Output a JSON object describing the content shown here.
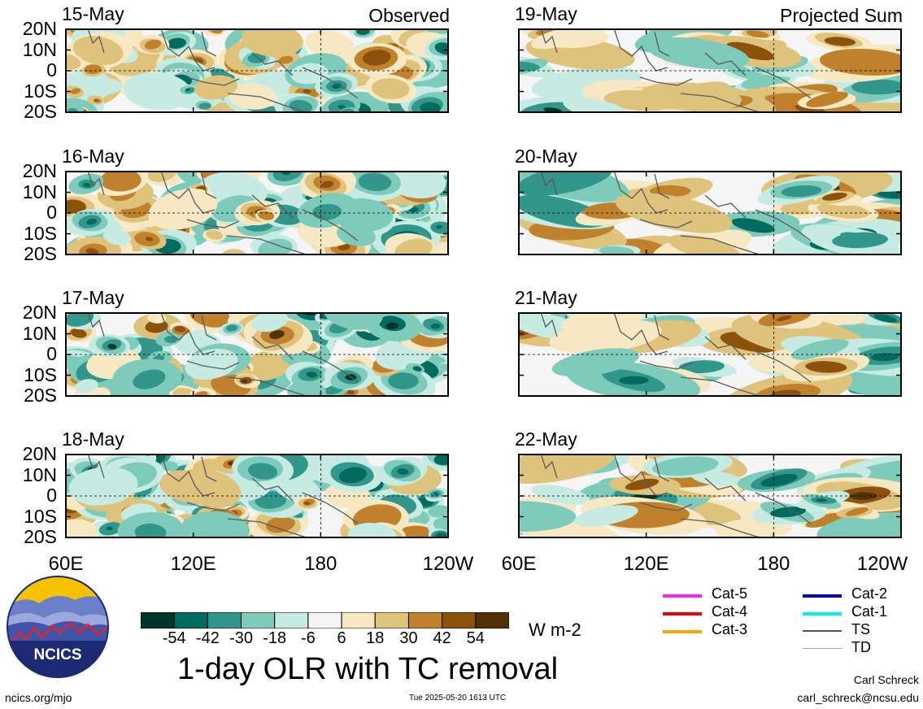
{
  "observed_label": "Observed",
  "projected_label": "Projected Sum",
  "lat_ticks": [
    "20N",
    "10N",
    "0",
    "10S",
    "20S"
  ],
  "lon_ticks": [
    "60E",
    "120E",
    "180",
    "120W"
  ],
  "panels": [
    {
      "date": "15-May",
      "type": "observed",
      "seed": 11
    },
    {
      "date": "16-May",
      "type": "observed",
      "seed": 23
    },
    {
      "date": "17-May",
      "type": "observed",
      "seed": 37
    },
    {
      "date": "18-May",
      "type": "observed",
      "seed": 51
    },
    {
      "date": "19-May",
      "type": "projected",
      "seed": 3
    },
    {
      "date": "20-May",
      "type": "projected",
      "seed": 7
    },
    {
      "date": "21-May",
      "type": "projected",
      "seed": 13
    },
    {
      "date": "22-May",
      "type": "projected",
      "seed": 19
    }
  ],
  "colorbar": {
    "labels": [
      "-54",
      "-42",
      "-30",
      "-18",
      "-6",
      "6",
      "18",
      "30",
      "42",
      "54"
    ],
    "colors": [
      "#01352b",
      "#006b5e",
      "#33968a",
      "#7fcbbb",
      "#c6ebe3",
      "#f5f5f5",
      "#f6e8c3",
      "#dfc27c",
      "#bf812c",
      "#8c510a",
      "#543005"
    ],
    "units": "W m-2"
  },
  "title": "1-day OLR with TC removal",
  "logo_text": "NCICS",
  "tc_legend": [
    {
      "label": "Cat-5",
      "color": "#ff22ee"
    },
    {
      "label": "Cat-4",
      "color": "#ee0000"
    },
    {
      "label": "Cat-3",
      "color": "#ffa500"
    },
    {
      "label": "Cat-2",
      "color": "#0000cc"
    },
    {
      "label": "Cat-1",
      "color": "#00eeee"
    },
    {
      "label": "TS",
      "color": "#555555"
    },
    {
      "label": "TD",
      "color": "#aaaaaa"
    }
  ],
  "footer": {
    "site": "ncics.org/mjo",
    "timestamp": "Tue 2025-05-20 1613 UTC",
    "author": "Carl Schreck",
    "email": "carl_schreck@ncsu.edu"
  }
}
